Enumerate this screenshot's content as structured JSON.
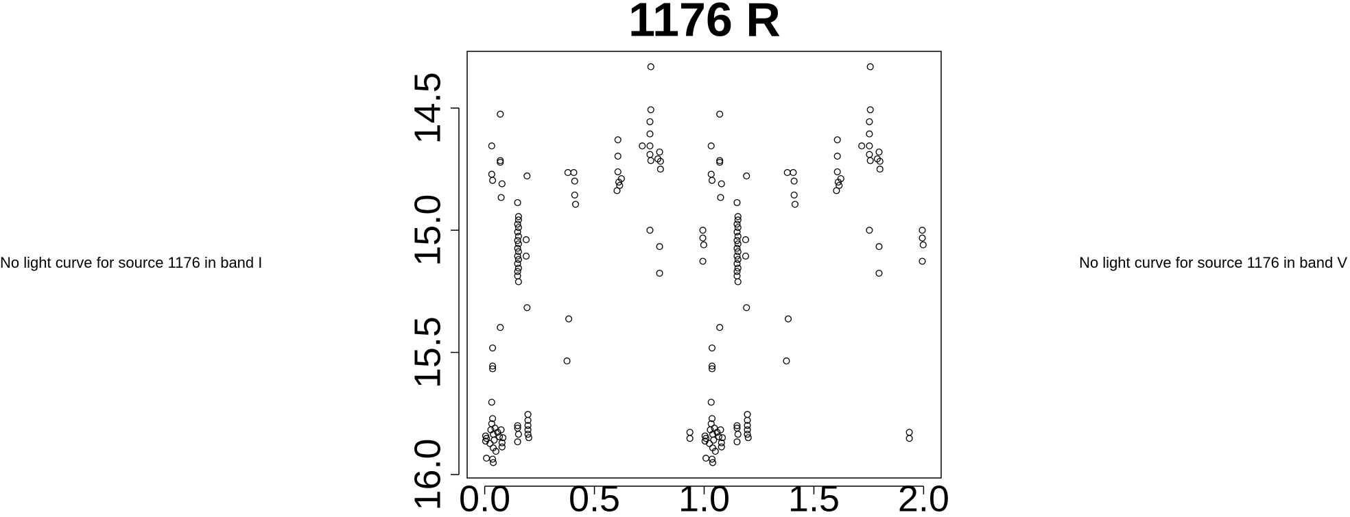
{
  "chart_data": {
    "type": "scatter",
    "title": "1176 R",
    "annotations": [
      "No light curve for source 1176 in band I",
      "No light curve for source 1176 in band V"
    ],
    "color": "#000000",
    "xlim": [
      -0.08,
      2.08
    ],
    "ylim": [
      16.014,
      14.268
    ],
    "xticks": [
      {
        "value": 0,
        "label": "0.0"
      },
      0.5,
      {
        "value": 1,
        "label": "1.0"
      },
      1.5,
      {
        "value": 2,
        "label": "2.0"
      }
    ],
    "yticks": [
      14.5,
      {
        "value": 15,
        "label": "15.0"
      },
      15.5,
      {
        "value": 16,
        "label": "16.0"
      }
    ],
    "x": [
      0.004,
      0.004,
      0.008,
      0.008,
      0.024,
      0.028,
      0.032,
      0.036,
      0.039,
      0.039,
      0.043,
      0.047,
      0.051,
      0.039,
      0.036,
      0.059,
      0.067,
      0.075,
      0.079,
      0.079,
      0.083,
      0.032,
      0.036,
      0.036,
      0.036,
      0.071,
      0.032,
      0.032,
      0.036,
      0.071,
      0.071,
      0.079,
      0.075,
      0.071,
      0.15,
      0.154,
      0.154,
      0.15,
      0.154,
      0.15,
      0.154,
      0.15,
      0.154,
      0.15,
      0.154,
      0.15,
      0.154,
      0.15,
      0.154,
      0.15,
      0.15,
      0.154,
      0.15,
      0.15,
      0.154,
      0.15,
      0.193,
      0.189,
      0.189,
      0.193,
      0.197,
      0.197,
      0.197,
      0.197,
      0.197,
      0.201,
      0.379,
      0.406,
      0.41,
      0.41,
      0.414,
      0.383,
      0.375,
      0.607,
      0.607,
      0.607,
      0.611,
      0.623,
      0.603,
      0.615,
      0.757,
      0.757,
      0.753,
      0.753,
      0.753,
      0.718,
      0.753,
      0.757,
      0.789,
      0.797,
      0.801,
      0.801,
      0.753,
      0.797,
      0.797,
      0.935,
      0.935,
      0.994,
      0.994,
      0.998,
      0.994,
      1.004,
      1.004,
      1.008,
      1.008,
      1.024,
      1.028,
      1.032,
      1.036,
      1.039,
      1.039,
      1.043,
      1.047,
      1.051,
      1.039,
      1.036,
      1.059,
      1.067,
      1.075,
      1.079,
      1.079,
      1.083,
      1.032,
      1.036,
      1.036,
      1.036,
      1.071,
      1.032,
      1.032,
      1.036,
      1.071,
      1.071,
      1.079,
      1.075,
      1.071,
      1.15,
      1.154,
      1.154,
      1.15,
      1.154,
      1.15,
      1.154,
      1.15,
      1.154,
      1.15,
      1.154,
      1.15,
      1.154,
      1.15,
      1.154,
      1.15,
      1.15,
      1.154,
      1.15,
      1.15,
      1.154,
      1.15,
      1.193,
      1.189,
      1.189,
      1.193,
      1.197,
      1.197,
      1.197,
      1.197,
      1.197,
      1.201,
      1.379,
      1.406,
      1.41,
      1.41,
      1.414,
      1.383,
      1.375,
      1.607,
      1.607,
      1.607,
      1.611,
      1.623,
      1.603,
      1.615,
      1.757,
      1.757,
      1.753,
      1.753,
      1.753,
      1.718,
      1.753,
      1.757,
      1.789,
      1.797,
      1.801,
      1.801,
      1.753,
      1.797,
      1.797,
      1.935,
      1.935,
      1.994,
      1.994,
      1.998,
      1.994
    ],
    "y": [
      15.842,
      15.863,
      15.852,
      15.933,
      15.873,
      15.817,
      15.792,
      15.771,
      15.835,
      15.891,
      15.859,
      15.81,
      15.905,
      15.951,
      15.937,
      15.827,
      15.845,
      15.817,
      15.887,
      15.87,
      15.849,
      15.704,
      15.567,
      15.556,
      15.482,
      15.398,
      14.655,
      14.771,
      14.796,
      14.715,
      14.722,
      14.81,
      14.866,
      14.525,
      14.887,
      14.944,
      14.958,
      14.975,
      14.989,
      15.007,
      15.025,
      15.042,
      15.056,
      15.074,
      15.088,
      15.106,
      15.12,
      15.137,
      15.155,
      15.169,
      15.187,
      15.211,
      15.81,
      15.8,
      15.835,
      15.866,
      14.778,
      15.039,
      15.106,
      15.317,
      15.754,
      15.778,
      15.799,
      15.817,
      15.835,
      15.849,
      14.764,
      14.764,
      14.799,
      14.856,
      14.894,
      15.363,
      15.535,
      14.63,
      14.697,
      14.761,
      14.803,
      14.789,
      14.838,
      14.817,
      14.331,
      14.507,
      14.556,
      14.606,
      14.655,
      14.655,
      14.69,
      14.715,
      14.708,
      14.68,
      14.718,
      14.75,
      15.0,
      15.067,
      15.176,
      15.827,
      15.852,
      15.0,
      15.032,
      15.06,
      15.127,
      15.842,
      15.863,
      15.852,
      15.933,
      15.873,
      15.817,
      15.792,
      15.771,
      15.835,
      15.891,
      15.859,
      15.81,
      15.905,
      15.951,
      15.937,
      15.827,
      15.845,
      15.817,
      15.887,
      15.87,
      15.849,
      15.704,
      15.567,
      15.556,
      15.482,
      15.398,
      14.655,
      14.771,
      14.796,
      14.715,
      14.722,
      14.81,
      14.866,
      14.525,
      14.887,
      14.944,
      14.958,
      14.975,
      14.989,
      15.007,
      15.025,
      15.042,
      15.056,
      15.074,
      15.088,
      15.106,
      15.12,
      15.137,
      15.155,
      15.169,
      15.187,
      15.211,
      15.81,
      15.8,
      15.835,
      15.866,
      14.778,
      15.039,
      15.106,
      15.317,
      15.754,
      15.778,
      15.799,
      15.817,
      15.835,
      15.849,
      14.764,
      14.764,
      14.799,
      14.856,
      14.894,
      15.363,
      15.535,
      14.63,
      14.697,
      14.761,
      14.803,
      14.789,
      14.838,
      14.817,
      14.331,
      14.507,
      14.556,
      14.606,
      14.655,
      14.655,
      14.69,
      14.715,
      14.708,
      14.68,
      14.718,
      14.75,
      15.0,
      15.067,
      15.176,
      15.827,
      15.852,
      15.0,
      15.032,
      15.06,
      15.127
    ]
  }
}
